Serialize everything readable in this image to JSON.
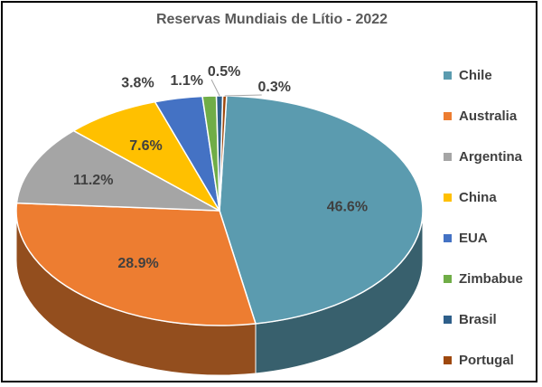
{
  "chart_data": {
    "type": "pie",
    "title": "Reservas Mundiais de Lítio - 2022",
    "categories": [
      "Chile",
      "Australia",
      "Argentina",
      "China",
      "EUA",
      "Zimbabue",
      "Brasil",
      "Portugal"
    ],
    "values": [
      46.6,
      28.9,
      11.2,
      7.6,
      3.8,
      1.1,
      0.5,
      0.3
    ],
    "value_labels": [
      "46.6%",
      "28.9%",
      "11.2%",
      "7.6%",
      "3.8%",
      "1.1%",
      "0.5%",
      "0.3%"
    ],
    "colors": [
      "#5B9BAF",
      "#ED7D31",
      "#A5A5A5",
      "#FFC000",
      "#4472C4",
      "#70AD47",
      "#2E5F8A",
      "#9E480E"
    ],
    "style": "3d",
    "legend_position": "right"
  }
}
